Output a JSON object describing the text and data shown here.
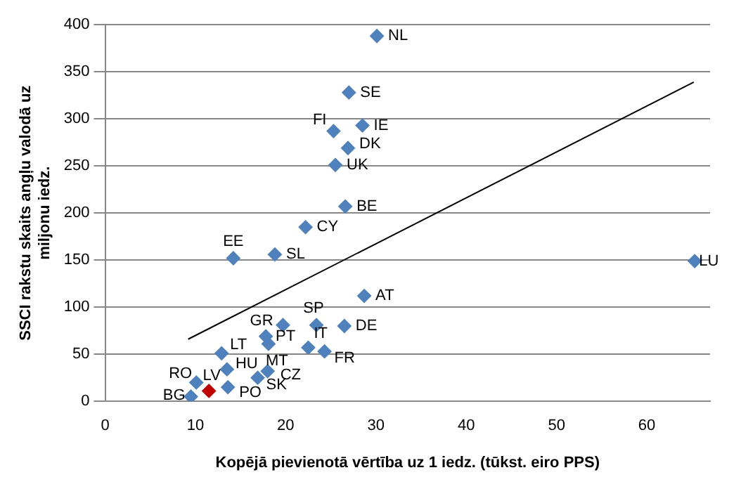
{
  "chart_data": {
    "type": "scatter",
    "xlabel": "Kopējā pievienotā vērtība uz 1 iedz. (tūkst. eiro PPS)",
    "ylabel": "SSCI rakstu skaits angļu valodā uz miljonu iedz.",
    "xlim": [
      0,
      67
    ],
    "xticks": [
      0,
      10,
      20,
      30,
      40,
      50,
      60
    ],
    "ylim": [
      0,
      400
    ],
    "yticks": [
      0,
      50,
      100,
      150,
      200,
      250,
      300,
      350,
      400
    ],
    "grid": "y",
    "legend": false,
    "marker": "diamond",
    "series": [
      {
        "x": [
          30.1,
          27.0,
          25.3,
          28.5,
          26.9,
          25.5,
          26.6,
          22.2,
          18.8,
          14.2,
          28.7,
          19.7,
          17.8,
          18.1,
          23.4,
          26.5,
          22.5,
          24.3,
          12.9,
          13.5,
          18.0,
          16.9,
          13.6,
          10.1,
          11.5,
          9.5,
          65.3
        ],
        "values": [
          388,
          328,
          287,
          293,
          269,
          251,
          207,
          185,
          156,
          152,
          112,
          81,
          69,
          61,
          81,
          80,
          57,
          53,
          51,
          34,
          32,
          25,
          15,
          20,
          11,
          5,
          149
        ],
        "color": "#4f81bd",
        "colors": [
          "#4f81bd",
          "#4f81bd",
          "#4f81bd",
          "#4f81bd",
          "#4f81bd",
          "#4f81bd",
          "#4f81bd",
          "#4f81bd",
          "#4f81bd",
          "#4f81bd",
          "#4f81bd",
          "#4f81bd",
          "#4f81bd",
          "#4f81bd",
          "#4f81bd",
          "#4f81bd",
          "#4f81bd",
          "#4f81bd",
          "#4f81bd",
          "#4f81bd",
          "#4f81bd",
          "#4f81bd",
          "#4f81bd",
          "#4f81bd",
          "#c00000",
          "#4f81bd",
          "#4f81bd"
        ]
      },
      {
        "type": "line",
        "x": [
          9.2,
          65.2
        ],
        "values": [
          66,
          339
        ],
        "color": "#000000",
        "marker": "none",
        "line_style": "solid"
      }
    ],
    "annotations": [
      {
        "text": "NL",
        "x": 30.1,
        "y": 388
      },
      {
        "text": "SE",
        "x": 27.0,
        "y": 328
      },
      {
        "text": "FI",
        "x": 25.3,
        "y": 287
      },
      {
        "text": "IE",
        "x": 28.5,
        "y": 293
      },
      {
        "text": "DK",
        "x": 26.9,
        "y": 269
      },
      {
        "text": "UK",
        "x": 25.5,
        "y": 251
      },
      {
        "text": "BE",
        "x": 26.6,
        "y": 207
      },
      {
        "text": "CY",
        "x": 22.2,
        "y": 185
      },
      {
        "text": "SL",
        "x": 18.8,
        "y": 156
      },
      {
        "text": "EE",
        "x": 14.2,
        "y": 152
      },
      {
        "text": "AT",
        "x": 28.7,
        "y": 112
      },
      {
        "text": "GR",
        "x": 19.7,
        "y": 81
      },
      {
        "text": "PT",
        "x": 17.8,
        "y": 69
      },
      {
        "text": "MT",
        "x": 18.1,
        "y": 61
      },
      {
        "text": "SP",
        "x": 23.4,
        "y": 81
      },
      {
        "text": "DE",
        "x": 26.5,
        "y": 80
      },
      {
        "text": "IT",
        "x": 22.5,
        "y": 57
      },
      {
        "text": "FR",
        "x": 24.3,
        "y": 53
      },
      {
        "text": "LT",
        "x": 12.9,
        "y": 51
      },
      {
        "text": "HU",
        "x": 13.5,
        "y": 34
      },
      {
        "text": "CZ",
        "x": 18.0,
        "y": 32
      },
      {
        "text": "SK",
        "x": 16.9,
        "y": 25
      },
      {
        "text": "PO",
        "x": 13.6,
        "y": 15
      },
      {
        "text": "RO",
        "x": 10.1,
        "y": 20
      },
      {
        "text": "LV",
        "x": 11.5,
        "y": 11
      },
      {
        "text": "BG",
        "x": 9.5,
        "y": 5
      },
      {
        "text": "LU",
        "x": 65.3,
        "y": 149
      }
    ]
  }
}
